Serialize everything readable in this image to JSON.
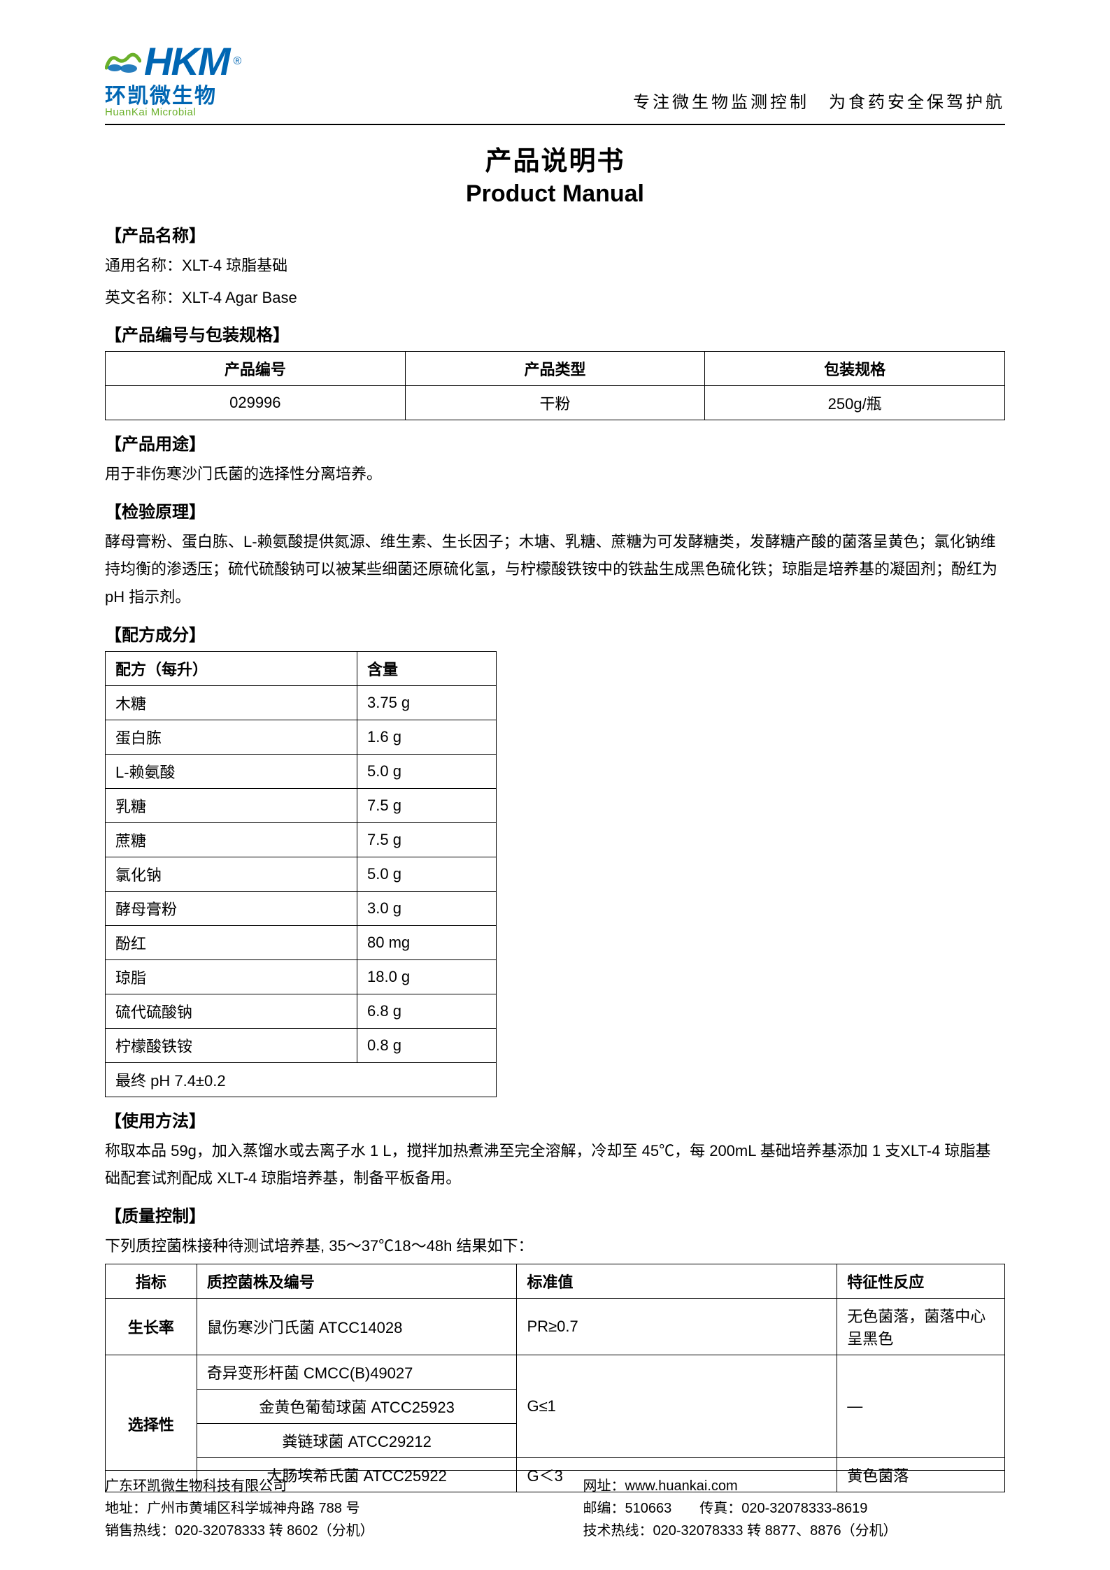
{
  "header": {
    "logo_cn": "环凯微生物",
    "logo_en": "HuanKai Microbial",
    "logo_letters": "HKM",
    "tagline": "专注微生物监测控制　为食药安全保驾护航",
    "logo_colors": {
      "blue": "#0066b3",
      "green": "#6ab02a"
    }
  },
  "title": {
    "cn": "产品说明书",
    "en": "Product Manual"
  },
  "sections": {
    "product_name": {
      "head": "【产品名称】",
      "line1": "通用名称：XLT-4 琼脂基础",
      "line2": "英文名称：XLT-4 Agar Base"
    },
    "pkg": {
      "head": "【产品编号与包装规格】",
      "columns": [
        "产品编号",
        "产品类型",
        "包装规格"
      ],
      "rows": [
        [
          "029996",
          "干粉",
          "250g/瓶"
        ]
      ]
    },
    "purpose": {
      "head": "【产品用途】",
      "text": "用于非伤寒沙门氏菌的选择性分离培养。"
    },
    "principle": {
      "head": "【检验原理】",
      "text": "酵母膏粉、蛋白胨、L-赖氨酸提供氮源、维生素、生长因子；木塘、乳糖、蔗糖为可发酵糖类，发酵糖产酸的菌落呈黄色；氯化钠维持均衡的渗透压；硫代硫酸钠可以被某些细菌还原硫化氢，与柠檬酸铁铵中的铁盐生成黑色硫化铁；琼脂是培养基的凝固剂；酚红为 pH 指示剂。"
    },
    "composition": {
      "head": "【配方成分】",
      "columns": [
        "配方（每升）",
        "含量"
      ],
      "rows": [
        [
          "木糖",
          "3.75 g"
        ],
        [
          "蛋白胨",
          "1.6 g"
        ],
        [
          "L-赖氨酸",
          "5.0 g"
        ],
        [
          "乳糖",
          "7.5 g"
        ],
        [
          "蔗糖",
          "7.5 g"
        ],
        [
          "氯化钠",
          "5.0 g"
        ],
        [
          "酵母膏粉",
          "3.0 g"
        ],
        [
          "酚红",
          "80 mg"
        ],
        [
          "琼脂",
          "18.0 g"
        ],
        [
          "硫代硫酸钠",
          "6.8 g"
        ],
        [
          "柠檬酸铁铵",
          "0.8 g"
        ]
      ],
      "ph_row": "最终 pH 7.4±0.2"
    },
    "usage": {
      "head": "【使用方法】",
      "text": "称取本品 59g，加入蒸馏水或去离子水 1 L，搅拌加热煮沸至完全溶解，冷却至 45℃，每 200mL 基础培养基添加 1 支XLT-4  琼脂基础配套试剂配成 XLT-4  琼脂培养基，制备平板备用。"
    },
    "qc": {
      "head": "【质量控制】",
      "intro": "下列质控菌株接种待测试培养基, 35～37℃18～48h 结果如下：",
      "columns": [
        "指标",
        "质控菌株及编号",
        "标准值",
        "特征性反应"
      ],
      "growth_label": "生长率",
      "growth_row": [
        "鼠伤寒沙门氏菌 ATCC14028",
        "PR≥0.7",
        "无色菌落，菌落中心呈黑色"
      ],
      "select_label": "选择性",
      "select_rows_group1": [
        "奇异变形杆菌 CMCC(B)49027",
        "金黄色葡萄球菌 ATCC25923",
        "粪链球菌 ATCC29212"
      ],
      "select_group1_std": "G≤1",
      "select_group1_char": "—",
      "select_row_last": [
        "大肠埃希氏菌  ATCC25922",
        "G＜3",
        "黄色菌落"
      ]
    }
  },
  "footer": {
    "company": "广东环凯微生物科技有限公司",
    "address": "地址：广州市黄埔区科学城神舟路 788 号",
    "sales": "销售热线：020-32078333 转 8602（分机）",
    "website": "网址：www.huankai.com",
    "postal_fax": "邮编：510663　　传真：020-32078333-8619",
    "tech": "技术热线：020-32078333 转 8877、8876（分机）"
  }
}
